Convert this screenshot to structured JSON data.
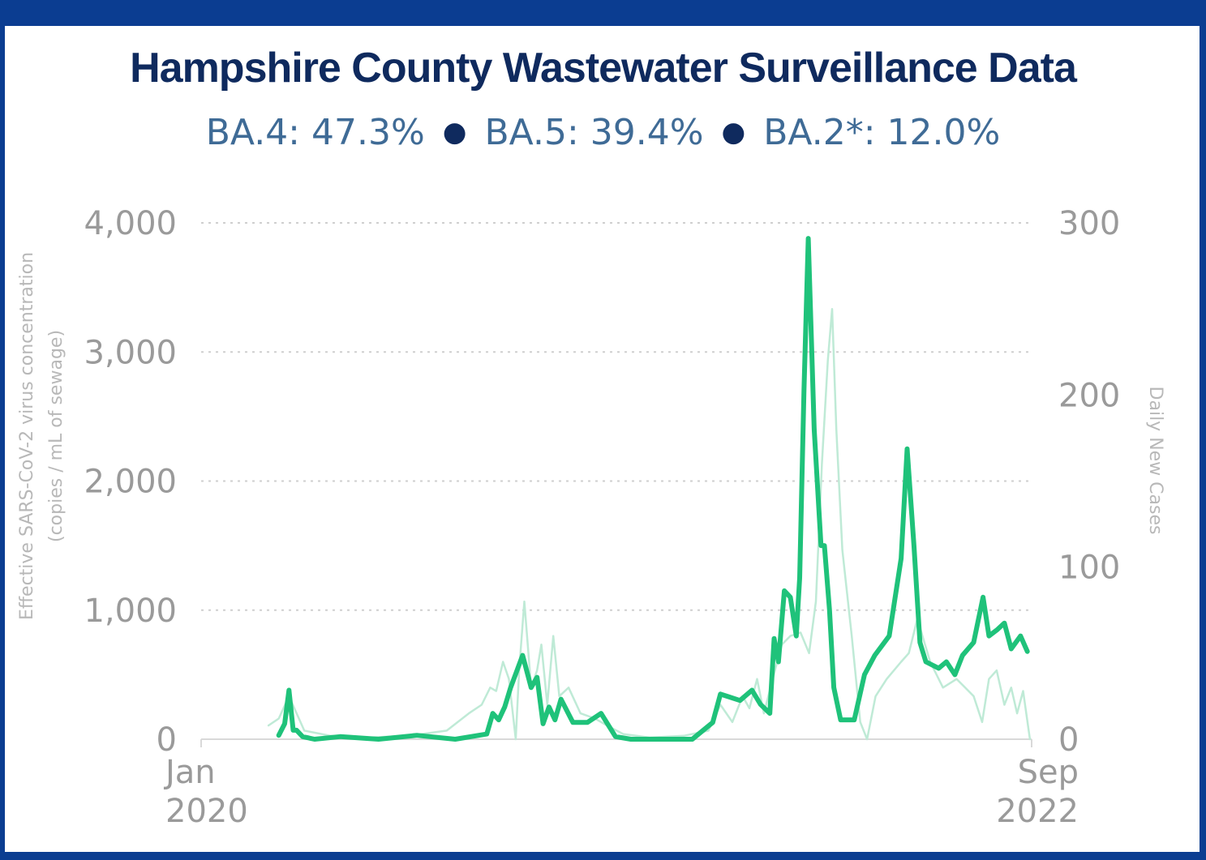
{
  "title": "Hampshire County Wastewater Surveillance Data",
  "subtitle": {
    "items": [
      "BA.4: 47.3%",
      "BA.5: 39.4%",
      "BA.2*: 12.0%"
    ],
    "separator": "●"
  },
  "chart_data": {
    "type": "line",
    "title": "Hampshire County Wastewater Surveillance Data",
    "ylabel_left_line1": "Effective SARS-CoV-2 virus concentration",
    "ylabel_left_line2": "(copies / mL of sewage)",
    "ylabel_right": "Daily New Cases",
    "xlim": [
      "2020-01-01",
      "2022-09-01"
    ],
    "ylim_left": [
      0,
      4000
    ],
    "ylim_right": [
      0,
      300
    ],
    "y_ticks_left": [
      "0",
      "1,000",
      "2,000",
      "3,000",
      "4,000"
    ],
    "y_ticks_right": [
      "0",
      "100",
      "200",
      "300"
    ],
    "x_ticks": [
      {
        "line1": "Jan",
        "line2": "2020"
      },
      {
        "line1": "Sep",
        "line2": "2022"
      }
    ],
    "grid": true,
    "colors": {
      "concentration": "#1fc27a",
      "cases": "#bfead6",
      "axis": "#d9d9d9",
      "grid": "#cfcfcf"
    },
    "series": [
      {
        "axis": "left",
        "x": [
          "2020-04-01",
          "2020-04-08",
          "2020-04-13",
          "2020-04-18",
          "2020-04-22",
          "2020-04-29",
          "2020-05-13",
          "2020-06-12",
          "2020-07-27",
          "2020-09-10",
          "2020-10-25",
          "2020-12-01",
          "2020-12-08",
          "2020-12-15",
          "2020-12-22",
          "2020-12-29",
          "2021-01-12",
          "2021-01-22",
          "2021-01-29",
          "2021-02-05",
          "2021-02-12",
          "2021-02-19",
          "2021-02-26",
          "2021-03-12",
          "2021-03-29",
          "2021-04-14",
          "2021-05-01",
          "2021-05-19",
          "2021-06-14",
          "2021-07-30",
          "2021-08-23",
          "2021-09-01",
          "2021-09-10",
          "2021-09-24",
          "2021-10-08",
          "2021-10-18",
          "2021-10-29",
          "2021-11-03",
          "2021-11-08",
          "2021-11-15",
          "2021-11-22",
          "2021-11-29",
          "2021-12-03",
          "2021-12-08",
          "2021-12-13",
          "2021-12-20",
          "2021-12-28",
          "2022-01-01",
          "2022-01-07",
          "2022-01-12",
          "2022-01-20",
          "2022-02-05",
          "2022-02-17",
          "2022-03-01",
          "2022-03-18",
          "2022-04-01",
          "2022-04-08",
          "2022-04-16",
          "2022-04-23",
          "2022-04-30",
          "2022-05-15",
          "2022-05-24",
          "2022-06-03",
          "2022-06-12",
          "2022-06-25",
          "2022-07-06",
          "2022-07-13",
          "2022-07-23",
          "2022-07-31",
          "2022-08-08",
          "2022-08-19",
          "2022-08-27"
        ],
        "values": [
          30,
          120,
          380,
          70,
          70,
          20,
          0,
          20,
          0,
          30,
          0,
          40,
          200,
          150,
          250,
          400,
          650,
          400,
          480,
          120,
          250,
          150,
          310,
          130,
          130,
          200,
          20,
          0,
          0,
          0,
          130,
          350,
          330,
          300,
          380,
          270,
          200,
          780,
          600,
          1150,
          1100,
          800,
          1250,
          2700,
          3880,
          2400,
          1500,
          1500,
          1000,
          400,
          150,
          150,
          500,
          650,
          800,
          1400,
          2250,
          1500,
          750,
          600,
          550,
          600,
          500,
          650,
          750,
          1100,
          800,
          850,
          900,
          700,
          800,
          680
        ]
      },
      {
        "axis": "right",
        "x": [
          "2020-03-20",
          "2020-04-01",
          "2020-04-13",
          "2020-05-01",
          "2020-06-01",
          "2020-07-15",
          "2020-09-01",
          "2020-10-15",
          "2020-11-10",
          "2020-11-25",
          "2020-12-05",
          "2020-12-12",
          "2020-12-20",
          "2020-12-27",
          "2021-01-04",
          "2021-01-08",
          "2021-01-14",
          "2021-01-22",
          "2021-01-29",
          "2021-02-03",
          "2021-02-10",
          "2021-02-17",
          "2021-02-24",
          "2021-03-07",
          "2021-03-21",
          "2021-04-07",
          "2021-04-21",
          "2021-05-10",
          "2021-06-10",
          "2021-07-20",
          "2021-08-18",
          "2021-09-01",
          "2021-09-15",
          "2021-09-27",
          "2021-10-05",
          "2021-10-14",
          "2021-10-22",
          "2021-11-04",
          "2021-11-12",
          "2021-11-22",
          "2021-12-04",
          "2021-12-14",
          "2021-12-22",
          "2021-12-29",
          "2022-01-05",
          "2022-01-10",
          "2022-01-15",
          "2022-01-22",
          "2022-02-02",
          "2022-02-12",
          "2022-02-20",
          "2022-03-02",
          "2022-03-15",
          "2022-04-01",
          "2022-04-10",
          "2022-04-20",
          "2022-05-05",
          "2022-05-20",
          "2022-06-05",
          "2022-06-15",
          "2022-06-25",
          "2022-07-05",
          "2022-07-13",
          "2022-07-22",
          "2022-07-31",
          "2022-08-08",
          "2022-08-15",
          "2022-08-22",
          "2022-08-30"
        ],
        "values": [
          8,
          12,
          25,
          5,
          2,
          1,
          2,
          5,
          15,
          20,
          30,
          28,
          45,
          35,
          0,
          40,
          80,
          30,
          40,
          55,
          20,
          60,
          25,
          30,
          15,
          12,
          8,
          3,
          1,
          2,
          5,
          20,
          10,
          25,
          18,
          35,
          15,
          40,
          55,
          60,
          62,
          50,
          80,
          160,
          220,
          250,
          180,
          110,
          60,
          10,
          0,
          25,
          35,
          45,
          50,
          70,
          45,
          30,
          35,
          30,
          25,
          10,
          35,
          40,
          20,
          30,
          15,
          28,
          0
        ]
      }
    ]
  }
}
